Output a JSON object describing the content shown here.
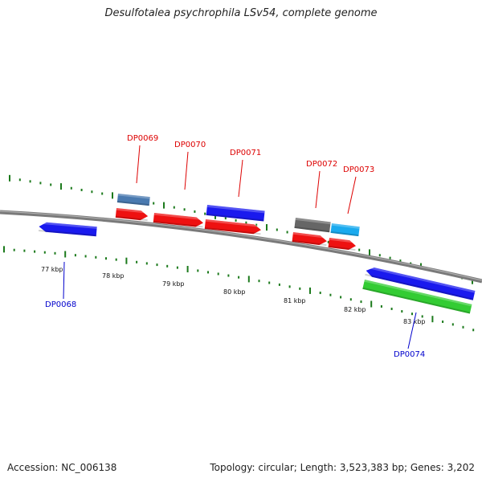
{
  "header": {
    "title": "Desulfotalea psychrophila LSv54, complete genome"
  },
  "footer": {
    "accession": "Accession: NC_006138",
    "summary": "Topology: circular; Length: 3,523,383 bp; Genes: 3,202"
  },
  "colors": {
    "backbone": "#7a7a7a",
    "tick": "#1c7a1c",
    "label_forward": "#dd0000",
    "label_reverse": "#0000cc"
  },
  "scale": {
    "ticks": [
      "77 kbp",
      "78 kbp",
      "79 kbp",
      "80 kbp",
      "81 kbp",
      "82 kbp",
      "83 kbp"
    ]
  },
  "genes": [
    {
      "name": "DP0068",
      "strand": "reverse",
      "color": "#1a1aee"
    },
    {
      "name": "DP0069",
      "strand": "forward",
      "color": "#4a7ab0"
    },
    {
      "name": "DP0070",
      "strand": "forward",
      "color": "#ee1111"
    },
    {
      "name": "DP0071",
      "strand": "forward",
      "color": "#ee1111"
    },
    {
      "name": "DP0072",
      "strand": "forward",
      "color": "#666666"
    },
    {
      "name": "DP0073",
      "strand": "forward",
      "color": "#1aaaee"
    },
    {
      "name": "DP0074",
      "strand": "reverse",
      "color": "#1a1aee"
    }
  ],
  "features": [
    {
      "id": "feature-dp0069-red",
      "color": "#ee1111",
      "strand": "forward"
    },
    {
      "id": "feature-dp0071-blue",
      "color": "#1a1aee",
      "strand": "forward"
    },
    {
      "id": "feature-dp0072-red",
      "color": "#ee1111",
      "strand": "forward"
    },
    {
      "id": "feature-dp0073-red",
      "color": "#ee1111",
      "strand": "forward"
    },
    {
      "id": "feature-dp0074-green",
      "color": "#33cc33",
      "strand": "reverse"
    }
  ]
}
